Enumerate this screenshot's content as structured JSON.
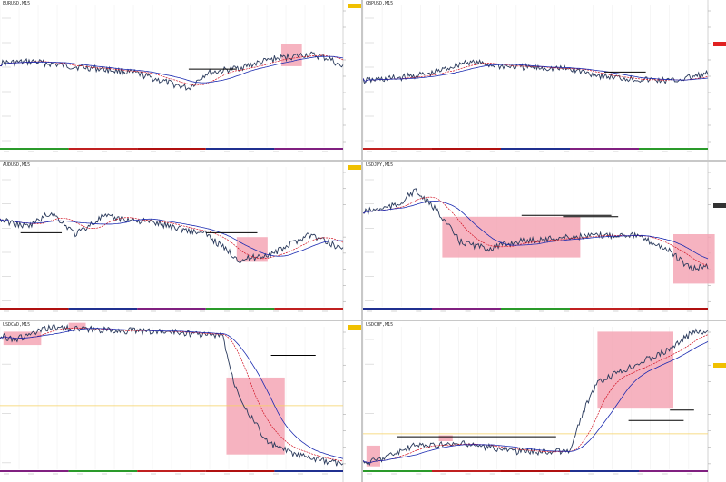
{
  "title": "",
  "colors": {
    "candles": "#2a3a5c",
    "fast_ma": "#d01020",
    "slow_ma": "#1a2ab0",
    "zone": "#f4a0b0",
    "level": "#000000",
    "hline_yellow": "#f5d060",
    "axis_bg": "#ffffff",
    "separator": "#9a9a9a"
  },
  "panes": [
    {
      "id": "p1",
      "symbol": "EURUSD,M15",
      "last_tag_color": "#f0c000"
    },
    {
      "id": "p2",
      "symbol": "GBPUSD,M15",
      "last_tag_color": "#e02020"
    },
    {
      "id": "p3",
      "symbol": "AUDUSD,M15",
      "last_tag_color": "#f0c000"
    },
    {
      "id": "p4",
      "symbol": "USDJPY,M15",
      "last_tag_color": "#333333"
    },
    {
      "id": "p5",
      "symbol": "USDCAD,M15",
      "last_tag_color": "#f0c000"
    },
    {
      "id": "p6",
      "symbol": "USDCHF,M15",
      "last_tag_color": "#f0c000"
    }
  ]
}
